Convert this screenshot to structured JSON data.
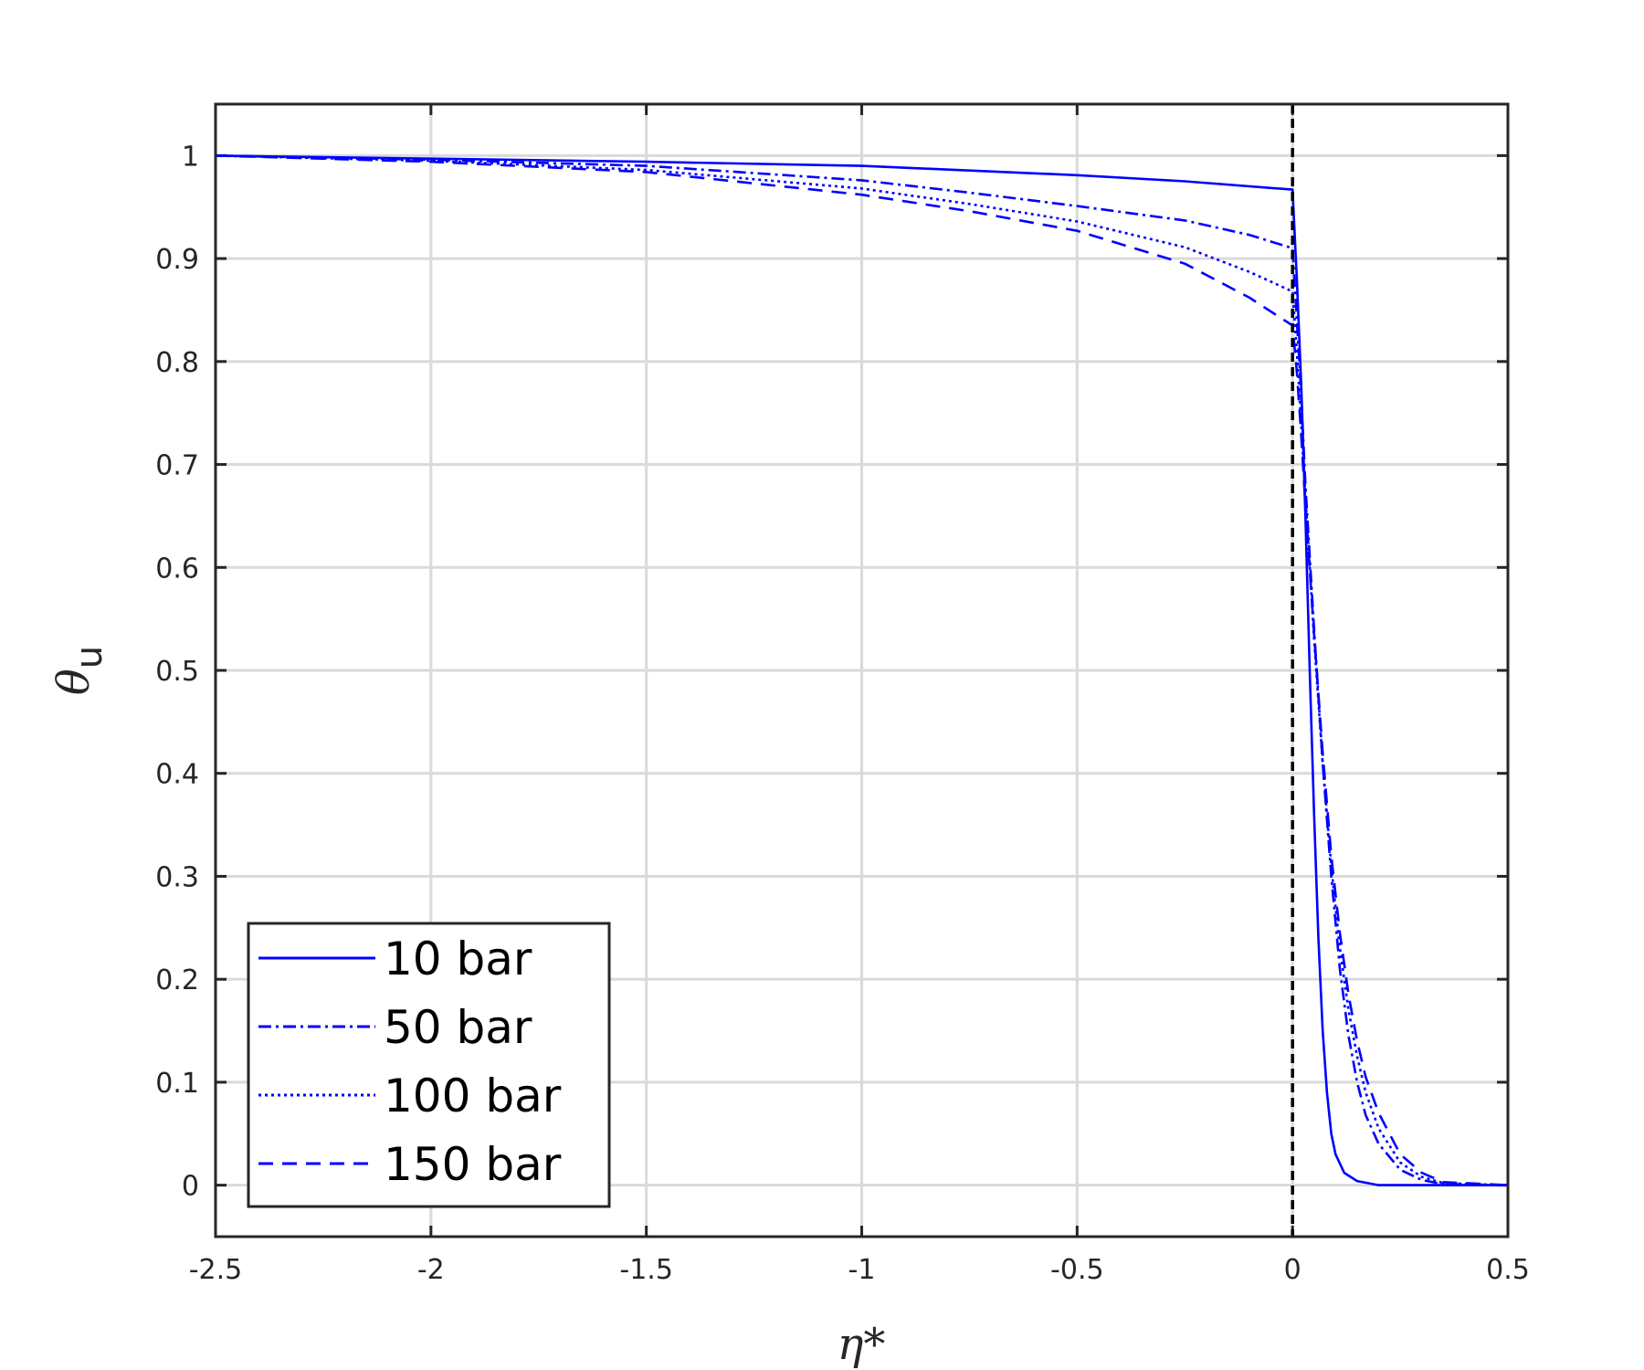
{
  "chart_data": {
    "type": "line",
    "title": "",
    "xlabel": "η*",
    "ylabel": {
      "symbol": "θ",
      "subscript": "u"
    },
    "xlim": [
      -2.5,
      0.5
    ],
    "ylim": [
      -0.05,
      1.05
    ],
    "xticks": [
      -2.5,
      -2,
      -1.5,
      -1,
      -0.5,
      0,
      0.5
    ],
    "xtick_labels": [
      "-2.5",
      "-2",
      "-1.5",
      "-1",
      "-0.5",
      "0",
      "0.5"
    ],
    "yticks": [
      0,
      0.1,
      0.2,
      0.3,
      0.4,
      0.5,
      0.6,
      0.7,
      0.8,
      0.9,
      1
    ],
    "ytick_labels": [
      "0",
      "0.1",
      "0.2",
      "0.3",
      "0.4",
      "0.5",
      "0.6",
      "0.7",
      "0.8",
      "0.9",
      "1"
    ],
    "grid": true,
    "legend_position": "bottom-left",
    "reference_line": {
      "x": 0,
      "style": "dashed",
      "color": "#000000"
    },
    "series_color": "#0000ff",
    "series": [
      {
        "name": "10 bar",
        "style": "solid",
        "x": [
          -2.5,
          -2.0,
          -1.5,
          -1.0,
          -0.5,
          -0.25,
          0.0,
          0.01,
          0.02,
          0.03,
          0.04,
          0.05,
          0.06,
          0.07,
          0.08,
          0.09,
          0.1,
          0.12,
          0.15,
          0.2,
          0.3,
          0.5
        ],
        "y": [
          1.0,
          0.997,
          0.994,
          0.99,
          0.981,
          0.975,
          0.967,
          0.88,
          0.78,
          0.65,
          0.5,
          0.36,
          0.24,
          0.15,
          0.09,
          0.05,
          0.03,
          0.012,
          0.004,
          0.0,
          0.0,
          0.0
        ]
      },
      {
        "name": "50 bar",
        "style": "dashdot",
        "x": [
          -2.5,
          -2.0,
          -1.5,
          -1.0,
          -0.75,
          -0.5,
          -0.25,
          -0.1,
          0.0,
          0.01,
          0.02,
          0.03,
          0.05,
          0.07,
          0.09,
          0.11,
          0.13,
          0.15,
          0.17,
          0.2,
          0.25,
          0.3,
          0.35,
          0.5
        ],
        "y": [
          1.0,
          0.996,
          0.99,
          0.976,
          0.964,
          0.951,
          0.937,
          0.923,
          0.91,
          0.84,
          0.77,
          0.68,
          0.54,
          0.41,
          0.3,
          0.21,
          0.145,
          0.1,
          0.068,
          0.04,
          0.015,
          0.005,
          0.001,
          0.0
        ]
      },
      {
        "name": "100 bar",
        "style": "dotted",
        "x": [
          -2.5,
          -2.0,
          -1.5,
          -1.0,
          -0.75,
          -0.5,
          -0.25,
          -0.1,
          0.0,
          0.01,
          0.02,
          0.03,
          0.05,
          0.07,
          0.09,
          0.11,
          0.13,
          0.15,
          0.17,
          0.2,
          0.25,
          0.3,
          0.35,
          0.5
        ],
        "y": [
          1.0,
          0.995,
          0.986,
          0.968,
          0.953,
          0.936,
          0.911,
          0.887,
          0.868,
          0.81,
          0.74,
          0.67,
          0.53,
          0.41,
          0.31,
          0.23,
          0.17,
          0.125,
          0.09,
          0.055,
          0.022,
          0.008,
          0.002,
          0.0
        ]
      },
      {
        "name": "150 bar",
        "style": "dashed",
        "x": [
          -2.5,
          -2.0,
          -1.5,
          -1.0,
          -0.75,
          -0.5,
          -0.25,
          -0.1,
          0.0,
          0.01,
          0.02,
          0.03,
          0.05,
          0.07,
          0.09,
          0.11,
          0.13,
          0.15,
          0.17,
          0.2,
          0.25,
          0.3,
          0.35,
          0.5
        ],
        "y": [
          1.0,
          0.994,
          0.984,
          0.962,
          0.946,
          0.927,
          0.895,
          0.862,
          0.835,
          0.79,
          0.73,
          0.66,
          0.535,
          0.42,
          0.32,
          0.245,
          0.185,
          0.14,
          0.105,
          0.07,
          0.03,
          0.012,
          0.003,
          0.0
        ]
      }
    ]
  }
}
